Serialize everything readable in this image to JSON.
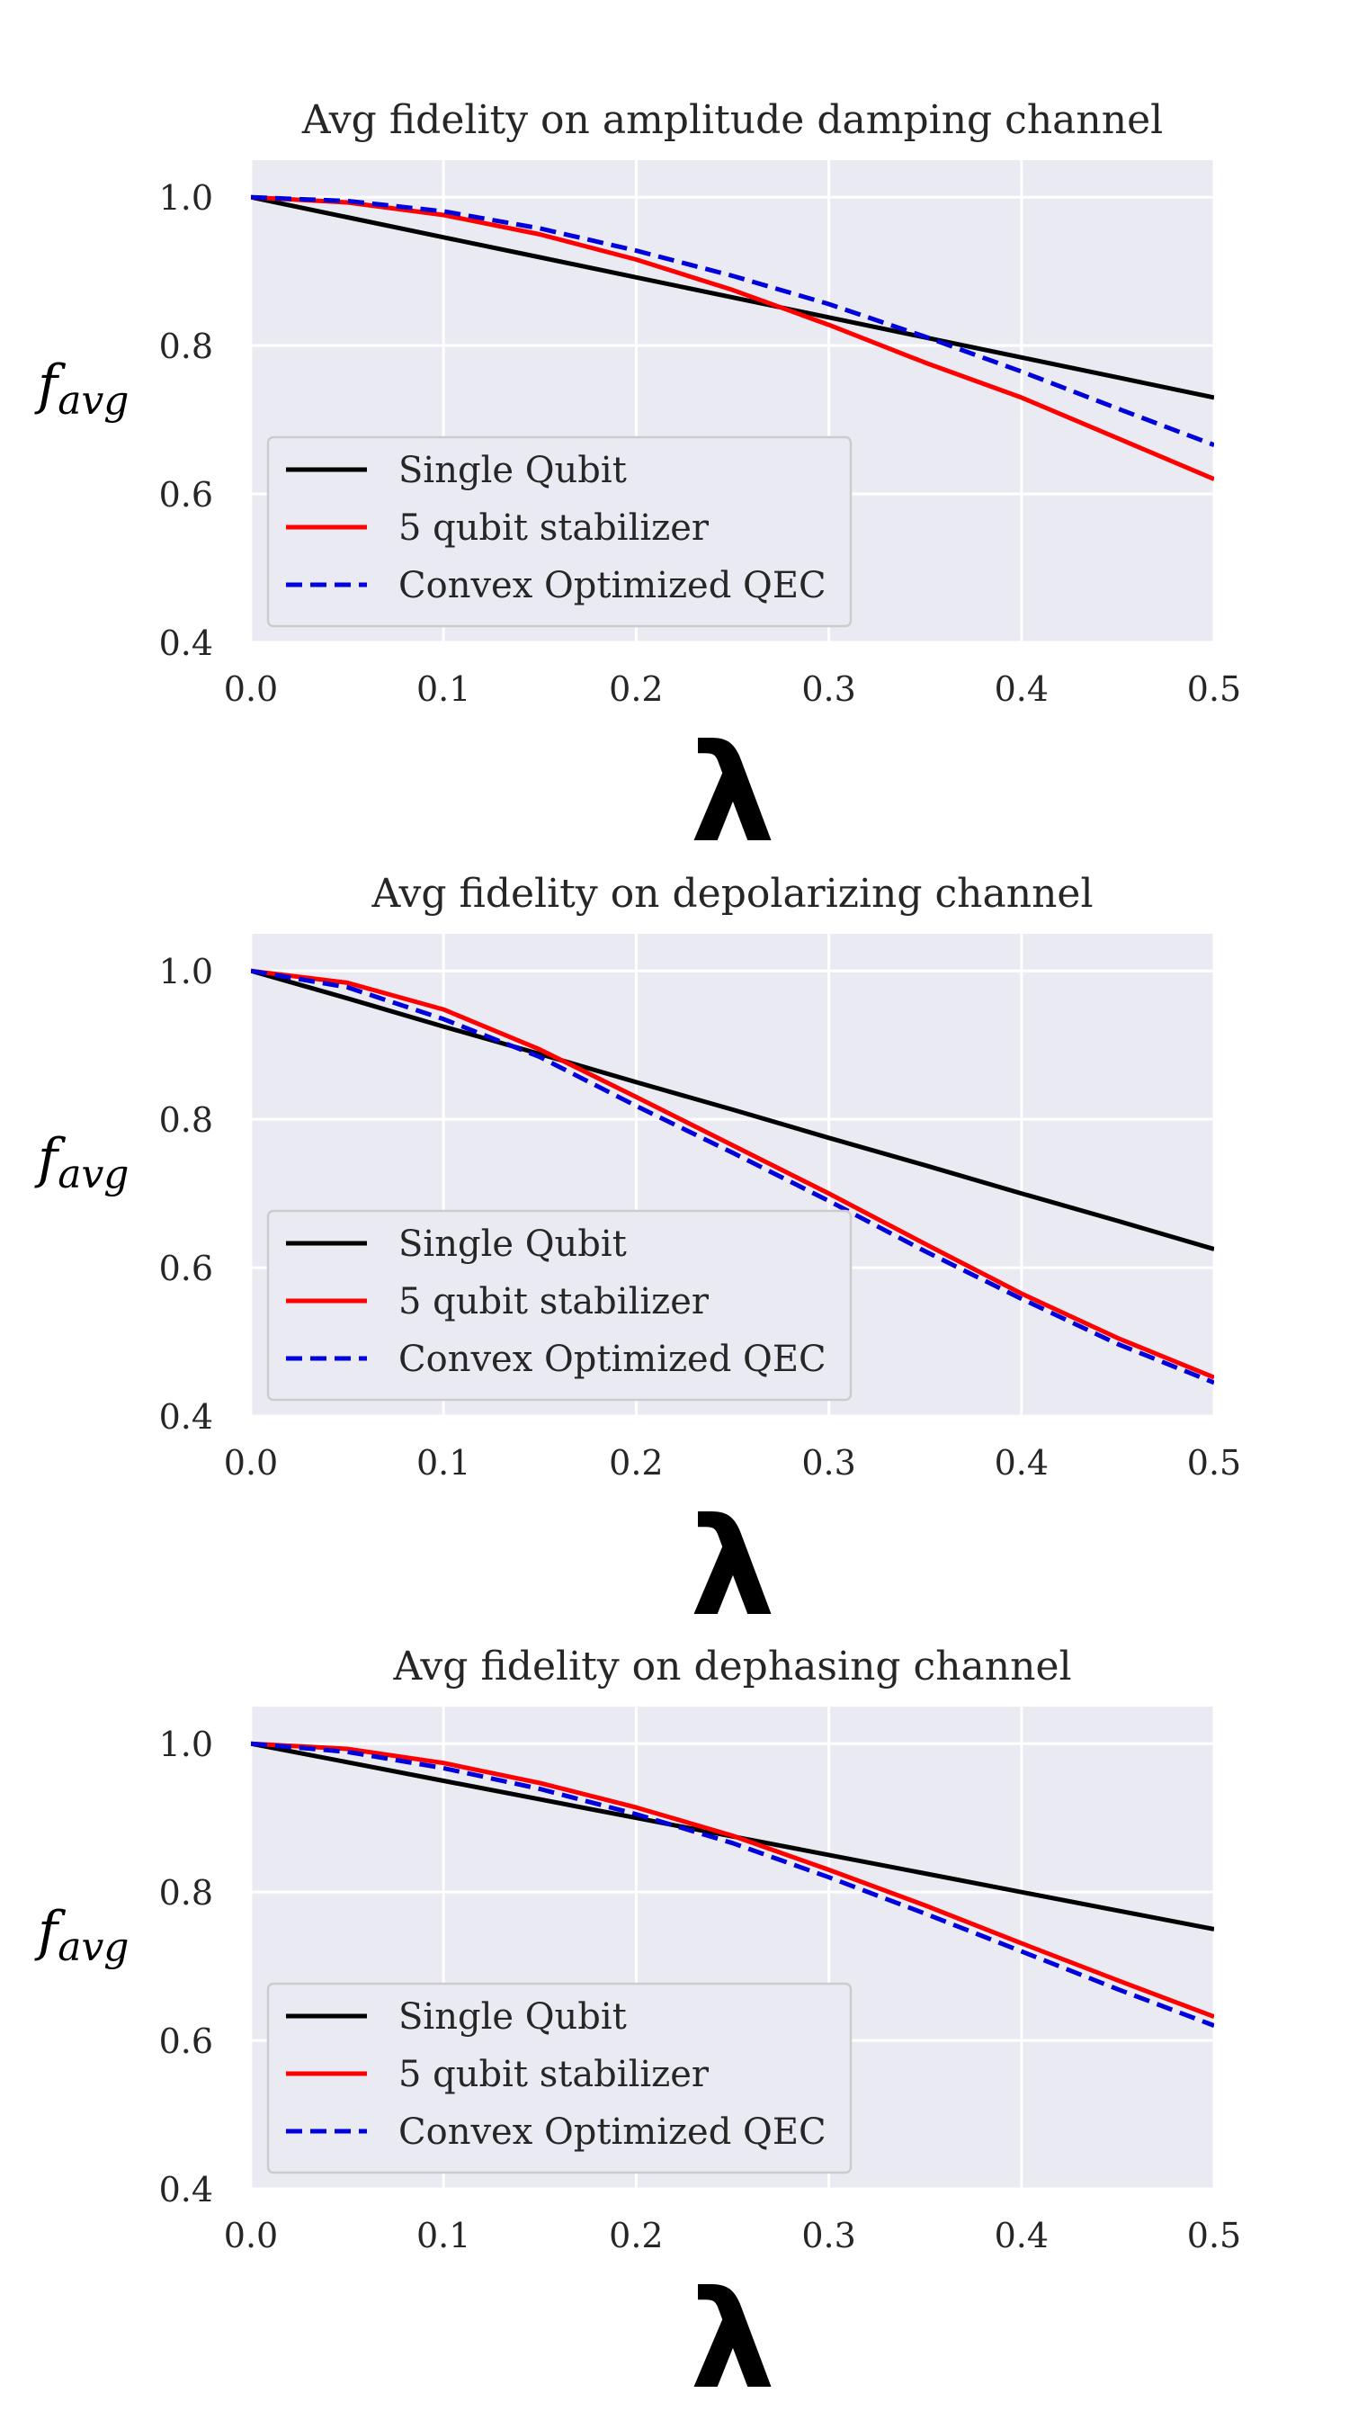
{
  "chart_data": [
    {
      "type": "line",
      "title": "Avg fidelity on amplitude damping channel",
      "xlabel": "λ",
      "ylabel_main": "f",
      "ylabel_sub": "avg",
      "xlim": [
        0.0,
        0.5
      ],
      "ylim": [
        0.4,
        1.05
      ],
      "xticks": [
        "0.0",
        "0.1",
        "0.2",
        "0.3",
        "0.4",
        "0.5"
      ],
      "yticks": [
        "0.4",
        "0.6",
        "0.8",
        "1.0"
      ],
      "grid": true,
      "legend_position": "lower-left",
      "x": [
        0.0,
        0.05,
        0.1,
        0.15,
        0.2,
        0.25,
        0.3,
        0.35,
        0.4,
        0.45,
        0.5
      ],
      "series": [
        {
          "name": "Single Qubit",
          "color": "#000000",
          "dash": "solid",
          "values": [
            1.0,
            0.973,
            0.946,
            0.919,
            0.892,
            0.865,
            0.838,
            0.811,
            0.784,
            0.757,
            0.73
          ]
        },
        {
          "name": "5 qubit stabilizer",
          "color": "#ff0000",
          "dash": "solid",
          "values": [
            1.0,
            0.993,
            0.976,
            0.95,
            0.916,
            0.875,
            0.828,
            0.777,
            0.73,
            0.675,
            0.62
          ]
        },
        {
          "name": "Convex Optimized QEC",
          "color": "#0000dd",
          "dash": "dashed",
          "values": [
            1.0,
            0.995,
            0.981,
            0.958,
            0.928,
            0.894,
            0.856,
            0.812,
            0.765,
            0.715,
            0.666
          ]
        }
      ]
    },
    {
      "type": "line",
      "title": "Avg fidelity on depolarizing channel",
      "xlabel": "λ",
      "ylabel_main": "f",
      "ylabel_sub": "avg",
      "xlim": [
        0.0,
        0.5
      ],
      "ylim": [
        0.4,
        1.05
      ],
      "xticks": [
        "0.0",
        "0.1",
        "0.2",
        "0.3",
        "0.4",
        "0.5"
      ],
      "yticks": [
        "0.4",
        "0.6",
        "0.8",
        "1.0"
      ],
      "grid": true,
      "legend_position": "lower-left",
      "x": [
        0.0,
        0.05,
        0.1,
        0.15,
        0.2,
        0.25,
        0.3,
        0.35,
        0.4,
        0.45,
        0.5
      ],
      "series": [
        {
          "name": "Single Qubit",
          "color": "#000000",
          "dash": "solid",
          "values": [
            1.0,
            0.963,
            0.925,
            0.888,
            0.85,
            0.813,
            0.775,
            0.738,
            0.7,
            0.663,
            0.625
          ]
        },
        {
          "name": "5 qubit stabilizer",
          "color": "#ff0000",
          "dash": "solid",
          "values": [
            1.0,
            0.984,
            0.948,
            0.894,
            0.83,
            0.765,
            0.7,
            0.632,
            0.565,
            0.505,
            0.452
          ]
        },
        {
          "name": "Convex Optimized QEC",
          "color": "#0000dd",
          "dash": "dashed",
          "values": [
            1.0,
            0.978,
            0.935,
            0.884,
            0.818,
            0.755,
            0.69,
            0.622,
            0.558,
            0.497,
            0.445
          ]
        }
      ]
    },
    {
      "type": "line",
      "title": "Avg fidelity on dephasing channel",
      "xlabel": "λ",
      "ylabel_main": "f",
      "ylabel_sub": "avg",
      "xlim": [
        0.0,
        0.5
      ],
      "ylim": [
        0.4,
        1.05
      ],
      "xticks": [
        "0.0",
        "0.1",
        "0.2",
        "0.3",
        "0.4",
        "0.5"
      ],
      "yticks": [
        "0.4",
        "0.6",
        "0.8",
        "1.0"
      ],
      "grid": true,
      "legend_position": "lower-left",
      "x": [
        0.0,
        0.05,
        0.1,
        0.15,
        0.2,
        0.25,
        0.3,
        0.35,
        0.4,
        0.45,
        0.5
      ],
      "series": [
        {
          "name": "Single Qubit",
          "color": "#000000",
          "dash": "solid",
          "values": [
            1.0,
            0.975,
            0.95,
            0.925,
            0.9,
            0.875,
            0.85,
            0.825,
            0.8,
            0.775,
            0.75
          ]
        },
        {
          "name": "5 qubit stabilizer",
          "color": "#ff0000",
          "dash": "solid",
          "values": [
            1.0,
            0.993,
            0.974,
            0.947,
            0.914,
            0.876,
            0.83,
            0.782,
            0.731,
            0.681,
            0.632
          ]
        },
        {
          "name": "Convex Optimized QEC",
          "color": "#0000dd",
          "dash": "dashed",
          "values": [
            1.0,
            0.989,
            0.967,
            0.939,
            0.905,
            0.866,
            0.82,
            0.771,
            0.72,
            0.669,
            0.62
          ]
        }
      ]
    }
  ]
}
